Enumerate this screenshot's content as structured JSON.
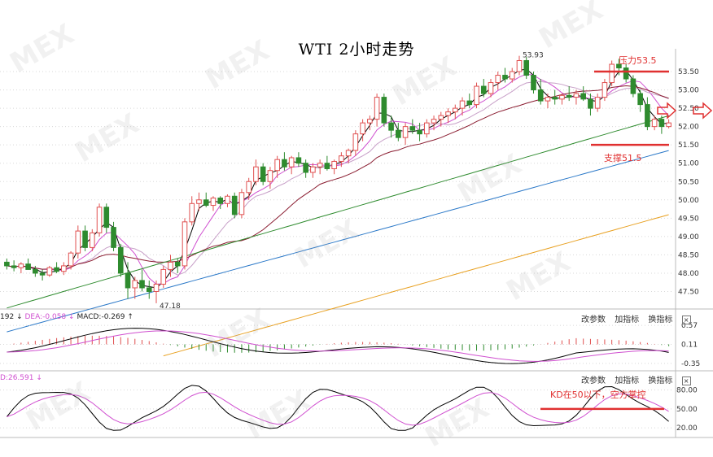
{
  "title": "WTI 2小时走势",
  "watermark": "MEX",
  "chart_data": [
    {
      "type": "candlestick",
      "title": "WTI 2小时走势",
      "y_ticks": [
        "53.50",
        "53.00",
        "52.50",
        "52.00",
        "51.50",
        "51.00",
        "50.50",
        "50.00",
        "49.50",
        "49.00",
        "48.50",
        "48.00",
        "47.50"
      ],
      "ylim": [
        47.2,
        53.9
      ],
      "grid": true,
      "price_labels": {
        "high": "53.93",
        "low": "47.18"
      },
      "annotations": {
        "resistance": {
          "label": "压力53.5",
          "value": 53.5
        },
        "support": {
          "label": "支撑51.5",
          "value": 51.5
        }
      },
      "ohlc": [
        [
          48.3,
          48.4,
          48.1,
          48.2
        ],
        [
          48.2,
          48.35,
          48.05,
          48.15
        ],
        [
          48.15,
          48.3,
          48.0,
          48.25
        ],
        [
          48.25,
          48.4,
          48.1,
          48.1
        ],
        [
          48.1,
          48.2,
          47.9,
          48.0
        ],
        [
          48.0,
          48.1,
          47.8,
          47.95
        ],
        [
          47.95,
          48.2,
          47.9,
          48.15
        ],
        [
          48.15,
          48.3,
          48.0,
          48.05
        ],
        [
          48.05,
          48.3,
          47.95,
          48.2
        ],
        [
          48.2,
          48.6,
          48.1,
          48.55
        ],
        [
          48.55,
          49.3,
          48.4,
          49.15
        ],
        [
          49.15,
          49.3,
          48.6,
          48.7
        ],
        [
          48.7,
          49.2,
          48.6,
          49.1
        ],
        [
          49.1,
          49.9,
          49.0,
          49.8
        ],
        [
          49.8,
          49.9,
          49.1,
          49.25
        ],
        [
          49.25,
          49.4,
          48.6,
          48.7
        ],
        [
          48.7,
          48.8,
          47.9,
          48.0
        ],
        [
          48.0,
          48.3,
          47.3,
          47.6
        ],
        [
          47.6,
          47.9,
          47.3,
          47.8
        ],
        [
          47.8,
          48.1,
          47.5,
          47.6
        ],
        [
          47.6,
          47.8,
          47.3,
          47.5
        ],
        [
          47.5,
          47.8,
          47.18,
          47.7
        ],
        [
          47.7,
          48.2,
          47.6,
          48.1
        ],
        [
          48.1,
          48.5,
          47.9,
          48.3
        ],
        [
          48.3,
          48.4,
          48.0,
          48.2
        ],
        [
          48.2,
          49.5,
          48.1,
          49.4
        ],
        [
          49.4,
          50.1,
          49.3,
          49.9
        ],
        [
          49.9,
          50.2,
          49.7,
          50.0
        ],
        [
          50.0,
          50.2,
          49.8,
          49.85
        ],
        [
          49.85,
          50.1,
          49.7,
          50.05
        ],
        [
          50.05,
          50.1,
          49.75,
          49.9
        ],
        [
          49.9,
          50.15,
          49.8,
          50.1
        ],
        [
          50.1,
          50.2,
          49.5,
          49.6
        ],
        [
          49.6,
          50.3,
          49.5,
          50.2
        ],
        [
          50.2,
          50.6,
          50.0,
          50.5
        ],
        [
          50.5,
          51.1,
          50.4,
          50.9
        ],
        [
          50.9,
          51.0,
          50.4,
          50.5
        ],
        [
          50.5,
          50.9,
          50.3,
          50.8
        ],
        [
          50.8,
          51.2,
          50.6,
          51.1
        ],
        [
          51.1,
          51.3,
          50.8,
          50.9
        ],
        [
          50.9,
          51.2,
          50.7,
          51.15
        ],
        [
          51.15,
          51.3,
          50.9,
          51.0
        ],
        [
          51.0,
          51.1,
          50.6,
          50.75
        ],
        [
          50.75,
          51.0,
          50.6,
          50.9
        ],
        [
          50.9,
          51.1,
          50.7,
          51.0
        ],
        [
          51.0,
          51.2,
          50.8,
          50.85
        ],
        [
          50.85,
          51.1,
          50.7,
          51.05
        ],
        [
          51.05,
          51.3,
          50.9,
          51.2
        ],
        [
          51.2,
          51.4,
          51.0,
          51.35
        ],
        [
          51.35,
          51.9,
          51.2,
          51.8
        ],
        [
          51.8,
          52.2,
          51.6,
          52.1
        ],
        [
          52.1,
          52.3,
          51.9,
          52.2
        ],
        [
          52.2,
          52.9,
          52.0,
          52.8
        ],
        [
          52.8,
          52.9,
          52.0,
          52.1
        ],
        [
          52.1,
          52.3,
          51.7,
          51.9
        ],
        [
          51.9,
          52.1,
          51.6,
          51.7
        ],
        [
          51.7,
          52.1,
          51.5,
          52.0
        ],
        [
          52.0,
          52.2,
          51.8,
          51.9
        ],
        [
          51.9,
          52.1,
          51.6,
          51.8
        ],
        [
          51.8,
          52.2,
          51.7,
          52.1
        ],
        [
          52.1,
          52.3,
          51.9,
          52.2
        ],
        [
          52.2,
          52.4,
          52.0,
          52.3
        ],
        [
          52.3,
          52.5,
          52.1,
          52.4
        ],
        [
          52.4,
          52.6,
          52.2,
          52.5
        ],
        [
          52.5,
          52.8,
          52.3,
          52.7
        ],
        [
          52.7,
          52.9,
          52.5,
          52.6
        ],
        [
          52.6,
          53.2,
          52.5,
          53.1
        ],
        [
          53.1,
          53.3,
          52.8,
          52.9
        ],
        [
          52.9,
          53.3,
          52.8,
          53.2
        ],
        [
          53.2,
          53.5,
          53.0,
          53.4
        ],
        [
          53.4,
          53.6,
          53.2,
          53.3
        ],
        [
          53.3,
          53.6,
          53.2,
          53.5
        ],
        [
          53.5,
          53.93,
          53.4,
          53.8
        ],
        [
          53.8,
          53.9,
          53.3,
          53.4
        ],
        [
          53.4,
          53.5,
          52.9,
          53.0
        ],
        [
          53.0,
          53.3,
          52.6,
          52.7
        ],
        [
          52.7,
          52.9,
          52.5,
          52.8
        ],
        [
          52.8,
          53.0,
          52.6,
          52.75
        ],
        [
          52.75,
          52.9,
          52.6,
          52.85
        ],
        [
          52.85,
          53.1,
          52.7,
          52.8
        ],
        [
          52.8,
          53.0,
          52.6,
          52.9
        ],
        [
          52.9,
          53.1,
          52.7,
          52.75
        ],
        [
          52.75,
          52.9,
          52.3,
          52.5
        ],
        [
          52.5,
          52.9,
          52.4,
          52.8
        ],
        [
          52.8,
          53.3,
          52.7,
          53.2
        ],
        [
          53.2,
          53.8,
          53.1,
          53.7
        ],
        [
          53.7,
          53.85,
          53.4,
          53.6
        ],
        [
          53.6,
          53.7,
          53.2,
          53.3
        ],
        [
          53.3,
          53.4,
          52.8,
          52.9
        ],
        [
          52.9,
          53.0,
          52.4,
          52.6
        ],
        [
          52.6,
          52.8,
          51.9,
          52.0
        ],
        [
          52.0,
          52.3,
          51.9,
          52.2
        ],
        [
          52.2,
          52.3,
          51.8,
          52.0
        ],
        [
          52.0,
          52.2,
          51.95,
          52.1
        ]
      ],
      "moving_averages": [
        {
          "color": "#000000"
        },
        {
          "color": "#d050d0"
        },
        {
          "color": "#c8a0c8"
        },
        {
          "color": "#8a1c30"
        },
        {
          "color": "#2e8b2e"
        },
        {
          "color": "#2a78c8"
        },
        {
          "color": "#e8a020"
        }
      ]
    },
    {
      "type": "macd",
      "header": {
        "dif_label": "192",
        "dea_label": "DEA:-0.058",
        "macd_label": "MACD:-0.269"
      },
      "y_ticks": [
        "0.57",
        "0.11",
        "-0.35"
      ],
      "ylim": [
        -0.45,
        0.65
      ],
      "buttons": [
        "改参数",
        "加指标",
        "换指标"
      ],
      "dif_color": "#000000",
      "dea_color": "#d050d0",
      "up_color": "#e05050",
      "down_color": "#2e8b2e"
    },
    {
      "type": "kdj",
      "header": {
        "d_label": "D:26.591"
      },
      "y_ticks": [
        "80.00",
        "50.00",
        "20.00"
      ],
      "ylim": [
        15,
        95
      ],
      "buttons": [
        "改参数",
        "加指标",
        "换指标"
      ],
      "annotation": {
        "label": "KD在50以下，空方掌控",
        "value": 50
      },
      "k_color": "#000000",
      "d_color": "#d050d0"
    }
  ],
  "colors": {
    "up": "#e05050",
    "down": "#2e8b2e",
    "accent": "#e03030",
    "grid": "#d8d8d8"
  }
}
